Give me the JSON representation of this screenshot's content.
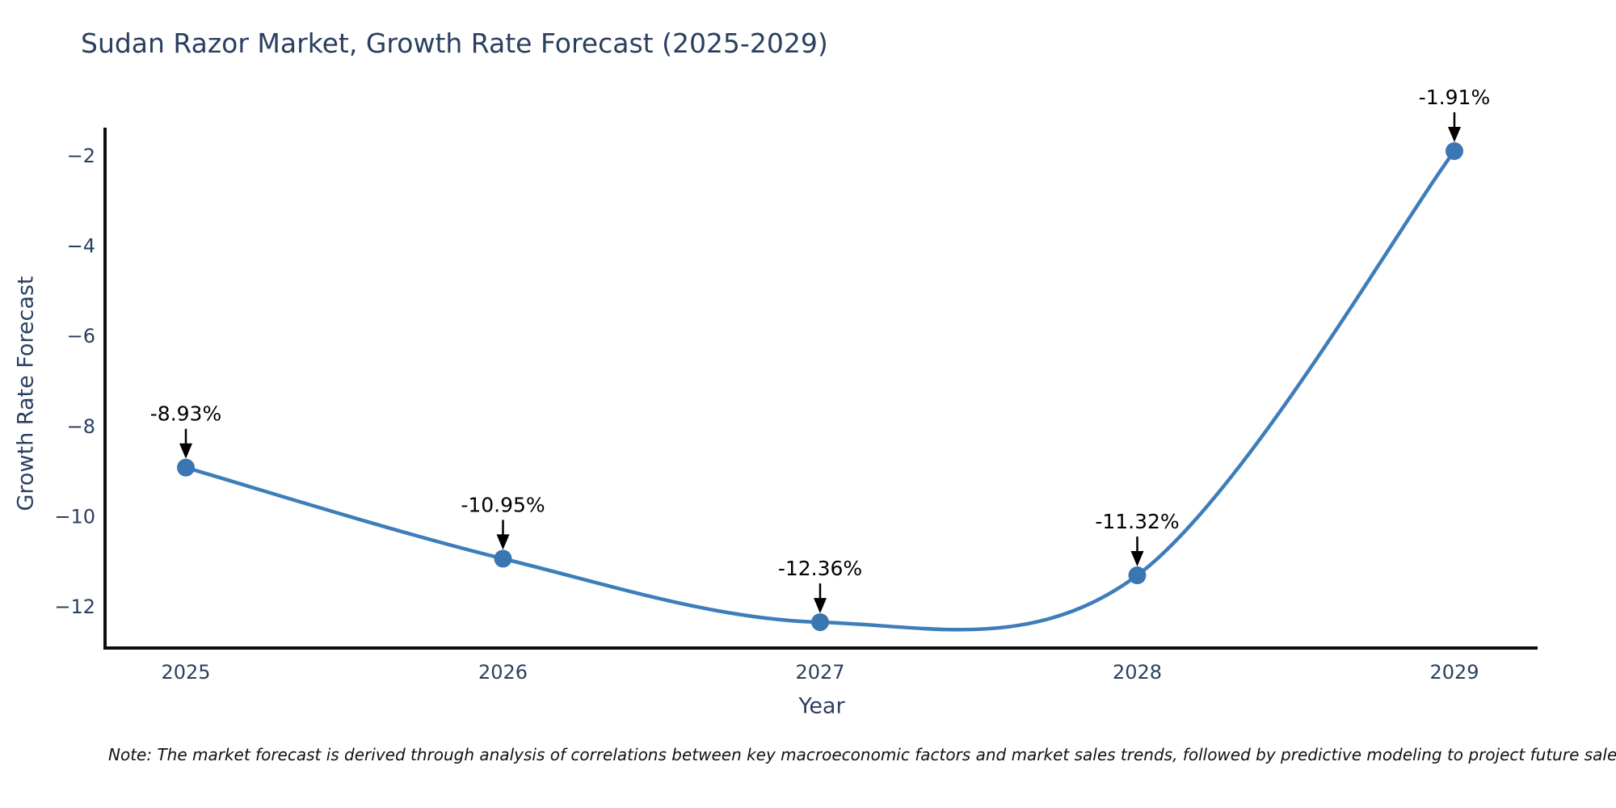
{
  "chart_data": {
    "type": "line",
    "title": "Sudan Razor Market, Growth Rate Forecast (2025-2029)",
    "xlabel": "Year",
    "ylabel": "Growth Rate Forecast",
    "x": [
      2025,
      2026,
      2027,
      2028,
      2029
    ],
    "series": [
      {
        "name": "Growth Rate Forecast",
        "values": [
          -8.93,
          -10.95,
          -12.36,
          -11.32,
          -1.91
        ],
        "point_labels": [
          "-8.93%",
          "-10.95%",
          "-12.36%",
          "-11.32%",
          "-1.91%"
        ]
      }
    ],
    "y_ticks": [
      -2,
      -4,
      -6,
      -8,
      -10,
      -12
    ],
    "ylim": [
      -12.95,
      -1.43
    ],
    "grid": false,
    "legend_position": "none",
    "line_shape": "spline",
    "colors": {
      "line": "#3d7dba",
      "marker": "#3a77b2",
      "annotation": "#000000",
      "axis": "#0d0d0d",
      "text": "#2a3f5f"
    },
    "note": "Note: The market forecast is derived through analysis of correlations between key macroeconomic factors and market sales trends, followed by predictive modeling to project future sales"
  }
}
